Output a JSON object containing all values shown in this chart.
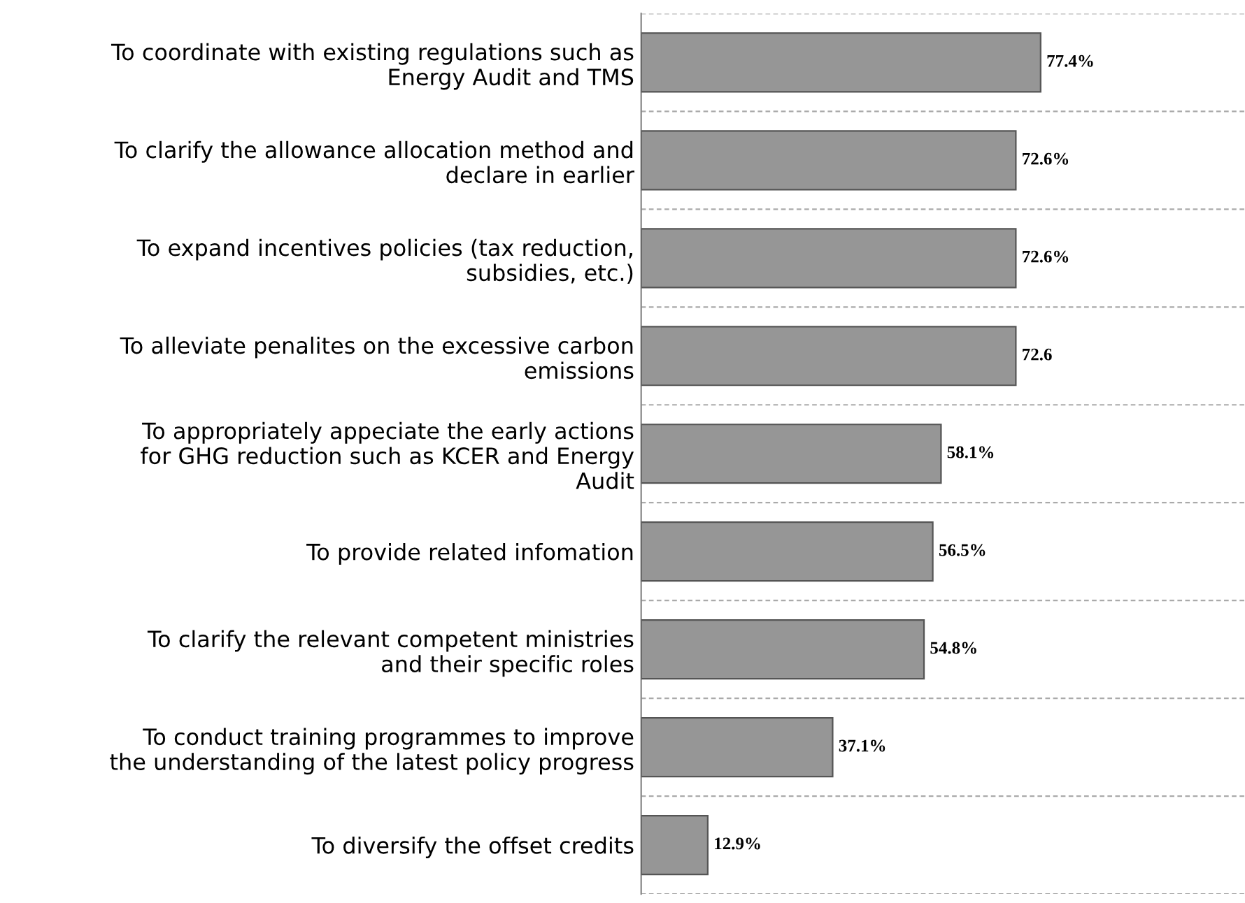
{
  "chart_data": {
    "type": "bar",
    "orientation": "horizontal",
    "relative": false,
    "categories": [
      "To coordinate with existing regulations such as\nEnergy Audit and TMS",
      "To clarify the allowance allocation method and\ndeclare in earlier",
      "To expand incentives policies (tax reduction,\nsubsidies, etc.)",
      "To alleviate penalites on the excessive carbon\nemissions",
      "To appropriately appeciate the early actions\nfor GHG reduction such as KCER and Energy\nAudit",
      "To provide related infomation",
      "To clarify the relevant competent ministries\nand their specific roles",
      "To conduct training programmes to improve\nthe understanding of the latest policy progress",
      "To diversify the offset credits"
    ],
    "values": [
      77.4,
      72.6,
      72.6,
      72.6,
      58.1,
      56.5,
      54.8,
      37.1,
      12.9
    ],
    "value_labels": [
      "77.4%",
      "72.6%",
      "72.6%",
      "72.6",
      "58.1%",
      "56.5%",
      "54.8%",
      "37.1%",
      "12.9%"
    ],
    "color": "#969696",
    "xlim": [
      0,
      117
    ],
    "grid": "y",
    "tick_labels": "y"
  }
}
